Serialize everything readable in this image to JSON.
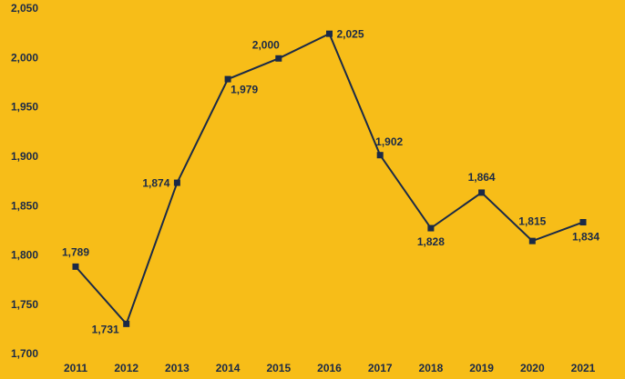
{
  "chart_data": {
    "type": "line",
    "categories": [
      "2011",
      "2012",
      "2013",
      "2014",
      "2015",
      "2016",
      "2017",
      "2018",
      "2019",
      "2020",
      "2021"
    ],
    "series": [
      {
        "color": "#1b2a47",
        "values": [
          1789,
          1731,
          1874,
          1979,
          2000,
          2025,
          1902,
          1828,
          1864,
          1815,
          1834
        ],
        "value_labels": [
          "1,789",
          "1,731",
          "1,874",
          "1,979",
          "2,000",
          "2,025",
          "1,902",
          "1,828",
          "1,864",
          "1,815",
          "1,834"
        ]
      }
    ],
    "ylim": [
      1700,
      2050
    ],
    "yticks": [
      {
        "value": 1700,
        "label": "1,700"
      },
      {
        "value": 1750,
        "label": "1,750"
      },
      {
        "value": 1800,
        "label": "1,800"
      },
      {
        "value": 1850,
        "label": "1,850"
      },
      {
        "value": 1900,
        "label": "1,900"
      },
      {
        "value": 1950,
        "label": "1,950"
      },
      {
        "value": 2000,
        "label": "2,000"
      },
      {
        "value": 2050,
        "label": "2,050"
      }
    ],
    "background": "#f7bd18"
  }
}
